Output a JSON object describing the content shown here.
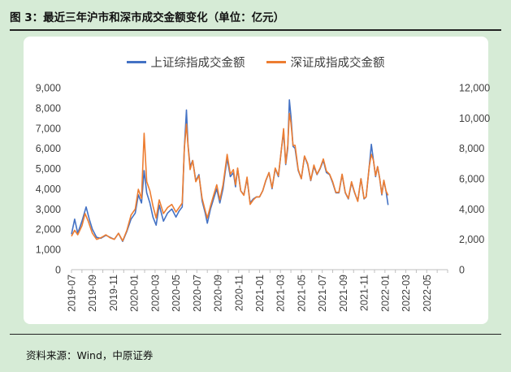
{
  "figure": {
    "title": "图 3：最近三年沪市和深市成交金额变化（单位：亿元）",
    "source": "资料来源：Wind，中原证券"
  },
  "colors": {
    "sh": "#4472c4",
    "sz": "#ed7d31",
    "axis": "#bfbfbf",
    "text": "#404040"
  },
  "chart_data": {
    "type": "line",
    "title": "",
    "xlabel": "",
    "ylabel_left": "",
    "ylabel_right": "",
    "ylim_left": [
      0,
      9000
    ],
    "ylim_right": [
      0,
      12000
    ],
    "yticks_left": [
      "0",
      "1,000",
      "2,000",
      "3,000",
      "4,000",
      "5,000",
      "6,000",
      "7,000",
      "8,000",
      "9,000"
    ],
    "yticks_right": [
      "0",
      "2,000",
      "4,000",
      "6,000",
      "8,000",
      "10,000",
      "12,000"
    ],
    "x_tick_labels": [
      "2019-07",
      "2019-09",
      "2019-11",
      "2020-01",
      "2020-03",
      "2020-05",
      "2020-07",
      "2020-09",
      "2020-11",
      "2021-01",
      "2021-03",
      "2021-05",
      "2021-07",
      "2021-09",
      "2021-11",
      "2022-01",
      "2022-03",
      "2022-05"
    ],
    "legend": [
      "上证综指成交金额",
      "深证成指成交金额"
    ],
    "legend_position": "top-center",
    "series": [
      {
        "name": "上证综指成交金额",
        "axis": "left",
        "points": [
          [
            0,
            1750
          ],
          [
            0.3,
            2500
          ],
          [
            0.6,
            1800
          ],
          [
            1,
            2400
          ],
          [
            1.4,
            3100
          ],
          [
            1.7,
            2500
          ],
          [
            2,
            2000
          ],
          [
            2.4,
            1600
          ],
          [
            2.8,
            1550
          ],
          [
            3.3,
            1700
          ],
          [
            3.7,
            1600
          ],
          [
            4.1,
            1500
          ],
          [
            4.5,
            1800
          ],
          [
            4.9,
            1400
          ],
          [
            5.3,
            1900
          ],
          [
            5.7,
            2500
          ],
          [
            6.1,
            2800
          ],
          [
            6.4,
            3700
          ],
          [
            6.7,
            3300
          ],
          [
            6.95,
            4900
          ],
          [
            7.2,
            3800
          ],
          [
            7.5,
            3300
          ],
          [
            7.8,
            2600
          ],
          [
            8.1,
            2200
          ],
          [
            8.4,
            3200
          ],
          [
            8.8,
            2400
          ],
          [
            9.2,
            2800
          ],
          [
            9.6,
            3000
          ],
          [
            10,
            2600
          ],
          [
            10.3,
            2900
          ],
          [
            10.6,
            3100
          ],
          [
            10.8,
            6000
          ],
          [
            11.0,
            7900
          ],
          [
            11.15,
            6200
          ],
          [
            11.35,
            5100
          ],
          [
            11.6,
            5400
          ],
          [
            11.9,
            4400
          ],
          [
            12.2,
            4700
          ],
          [
            12.5,
            3400
          ],
          [
            12.8,
            2800
          ],
          [
            13.0,
            2300
          ],
          [
            13.3,
            3000
          ],
          [
            13.6,
            3500
          ],
          [
            13.9,
            4000
          ],
          [
            14.2,
            3300
          ],
          [
            14.5,
            4000
          ],
          [
            14.7,
            4800
          ],
          [
            14.9,
            5500
          ],
          [
            15.2,
            4600
          ],
          [
            15.5,
            4800
          ],
          [
            15.7,
            4100
          ],
          [
            15.9,
            5000
          ],
          [
            16.2,
            3900
          ],
          [
            16.5,
            3700
          ],
          [
            16.8,
            4500
          ],
          [
            17.1,
            3300
          ],
          [
            17.4,
            3500
          ],
          [
            17.7,
            3600
          ],
          [
            18,
            3600
          ],
          [
            18.3,
            3900
          ],
          [
            18.6,
            4400
          ],
          [
            18.9,
            4800
          ],
          [
            19.2,
            4000
          ],
          [
            19.5,
            5000
          ],
          [
            19.8,
            4600
          ],
          [
            20.1,
            6000
          ],
          [
            20.3,
            6800
          ],
          [
            20.5,
            5200
          ],
          [
            20.7,
            6000
          ],
          [
            20.85,
            8400
          ],
          [
            21.0,
            7600
          ],
          [
            21.2,
            6100
          ],
          [
            21.4,
            6000
          ],
          [
            21.7,
            4900
          ],
          [
            22,
            4500
          ],
          [
            22.3,
            5600
          ],
          [
            22.6,
            5200
          ],
          [
            22.9,
            4400
          ],
          [
            23.2,
            5100
          ],
          [
            23.5,
            4700
          ],
          [
            23.8,
            5000
          ],
          [
            24.1,
            5400
          ],
          [
            24.4,
            4800
          ],
          [
            24.7,
            4700
          ],
          [
            25,
            4300
          ],
          [
            25.3,
            3800
          ],
          [
            25.6,
            3800
          ],
          [
            25.9,
            4700
          ],
          [
            26.2,
            3800
          ],
          [
            26.5,
            3500
          ],
          [
            26.8,
            4300
          ],
          [
            27.1,
            3800
          ],
          [
            27.4,
            3400
          ],
          [
            27.7,
            4500
          ],
          [
            28.0,
            3500
          ],
          [
            28.2,
            3600
          ],
          [
            28.5,
            5100
          ],
          [
            28.7,
            6200
          ],
          [
            28.9,
            5400
          ],
          [
            29.1,
            4600
          ],
          [
            29.3,
            5100
          ],
          [
            29.5,
            4500
          ],
          [
            29.7,
            3700
          ],
          [
            29.9,
            4400
          ],
          [
            30.1,
            3900
          ],
          [
            30.3,
            3200
          ]
        ]
      },
      {
        "name": "深证成指成交金额",
        "axis": "right",
        "points": [
          [
            0,
            2200
          ],
          [
            0.3,
            2600
          ],
          [
            0.6,
            2300
          ],
          [
            1,
            2900
          ],
          [
            1.3,
            3700
          ],
          [
            1.6,
            3200
          ],
          [
            2,
            2400
          ],
          [
            2.4,
            2000
          ],
          [
            2.8,
            2100
          ],
          [
            3.3,
            2300
          ],
          [
            3.7,
            2100
          ],
          [
            4.1,
            2000
          ],
          [
            4.5,
            2400
          ],
          [
            4.9,
            1900
          ],
          [
            5.3,
            2600
          ],
          [
            5.7,
            3600
          ],
          [
            6.1,
            4000
          ],
          [
            6.4,
            5300
          ],
          [
            6.7,
            4700
          ],
          [
            6.95,
            9000
          ],
          [
            7.2,
            5800
          ],
          [
            7.5,
            5200
          ],
          [
            7.8,
            4200
          ],
          [
            8.1,
            3400
          ],
          [
            8.4,
            4600
          ],
          [
            8.8,
            3700
          ],
          [
            9.2,
            4100
          ],
          [
            9.6,
            4300
          ],
          [
            10,
            3800
          ],
          [
            10.3,
            4100
          ],
          [
            10.6,
            4400
          ],
          [
            10.8,
            8000
          ],
          [
            11.0,
            9600
          ],
          [
            11.15,
            8200
          ],
          [
            11.35,
            6600
          ],
          [
            11.6,
            7200
          ],
          [
            11.9,
            5800
          ],
          [
            12.2,
            6200
          ],
          [
            12.5,
            4700
          ],
          [
            12.8,
            3900
          ],
          [
            13.0,
            3400
          ],
          [
            13.3,
            4200
          ],
          [
            13.6,
            4900
          ],
          [
            13.9,
            5600
          ],
          [
            14.2,
            4600
          ],
          [
            14.5,
            5600
          ],
          [
            14.7,
            6600
          ],
          [
            14.9,
            7600
          ],
          [
            15.2,
            6300
          ],
          [
            15.5,
            6600
          ],
          [
            15.7,
            5600
          ],
          [
            15.9,
            6700
          ],
          [
            16.2,
            5200
          ],
          [
            16.5,
            4900
          ],
          [
            16.8,
            6100
          ],
          [
            17.1,
            4300
          ],
          [
            17.4,
            4600
          ],
          [
            17.7,
            4800
          ],
          [
            18,
            4800
          ],
          [
            18.3,
            5200
          ],
          [
            18.6,
            5900
          ],
          [
            18.9,
            6400
          ],
          [
            19.2,
            5400
          ],
          [
            19.5,
            6700
          ],
          [
            19.8,
            6200
          ],
          [
            20.1,
            8000
          ],
          [
            20.3,
            9300
          ],
          [
            20.5,
            7000
          ],
          [
            20.7,
            8200
          ],
          [
            20.85,
            10300
          ],
          [
            21.0,
            9700
          ],
          [
            21.2,
            8200
          ],
          [
            21.4,
            8200
          ],
          [
            21.7,
            6600
          ],
          [
            22,
            6000
          ],
          [
            22.3,
            7500
          ],
          [
            22.6,
            7000
          ],
          [
            22.9,
            5900
          ],
          [
            23.2,
            6900
          ],
          [
            23.5,
            6300
          ],
          [
            23.8,
            6700
          ],
          [
            24.1,
            7300
          ],
          [
            24.4,
            6500
          ],
          [
            24.7,
            6300
          ],
          [
            25,
            5800
          ],
          [
            25.3,
            5100
          ],
          [
            25.6,
            5100
          ],
          [
            25.9,
            6300
          ],
          [
            26.2,
            5100
          ],
          [
            26.5,
            4700
          ],
          [
            26.8,
            5800
          ],
          [
            27.1,
            5100
          ],
          [
            27.4,
            4500
          ],
          [
            27.7,
            6000
          ],
          [
            28.0,
            4700
          ],
          [
            28.2,
            4800
          ],
          [
            28.5,
            6800
          ],
          [
            28.7,
            7600
          ],
          [
            28.9,
            7200
          ],
          [
            29.1,
            6200
          ],
          [
            29.3,
            6800
          ],
          [
            29.5,
            6000
          ],
          [
            29.7,
            5000
          ],
          [
            29.9,
            5900
          ],
          [
            30.1,
            5200
          ],
          [
            30.3,
            4900
          ]
        ]
      }
    ]
  }
}
